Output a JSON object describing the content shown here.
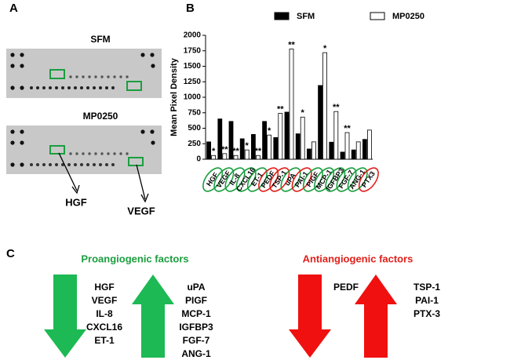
{
  "panel_labels": [
    "A",
    "B",
    "C"
  ],
  "panel_a": {
    "top_label": "SFM",
    "bottom_label": "MP0250",
    "callouts": [
      "HGF",
      "VEGF"
    ]
  },
  "chart_data": {
    "type": "bar",
    "y_label": "Mean Pixel Density",
    "categories": [
      "HGF",
      "VEGF",
      "IL-8",
      "CXCL16",
      "ET-1",
      "PEDF",
      "TSP-1",
      "uPA",
      "PAI-1",
      "PlGF",
      "MCP-1",
      "IGFBP3",
      "FGF-7",
      "ANG-1",
      "PTX3"
    ],
    "category_colors": [
      "#1a9e3f",
      "#1a9e3f",
      "#1a9e3f",
      "#1a9e3f",
      "#1a9e3f",
      "#e0201b",
      "#e0201b",
      "#1a9e3f",
      "#e0201b",
      "#1a9e3f",
      "#1a9e3f",
      "#1a9e3f",
      "#1a9e3f",
      "#1a9e3f",
      "#e0201b"
    ],
    "series": [
      {
        "name": "SFM",
        "color": "#000000",
        "values": [
          280,
          650,
          610,
          330,
          400,
          610,
          350,
          760,
          410,
          165,
          1190,
          275,
          115,
          150,
          320
        ]
      },
      {
        "name": "MP0250",
        "color": "#ffffff",
        "values": [
          60,
          90,
          60,
          150,
          60,
          390,
          740,
          1780,
          680,
          280,
          1720,
          770,
          430,
          280,
          470
        ]
      }
    ],
    "significance": [
      "*",
      "**",
      "**",
      "*",
      "**",
      "*",
      "**",
      "**",
      "*",
      null,
      "*",
      "**",
      "**",
      null,
      null
    ],
    "ylim": [
      0,
      2000
    ],
    "yticks": [
      0,
      250,
      500,
      750,
      1000,
      1250,
      1500,
      1750,
      2000
    ],
    "grid": false
  },
  "panel_c": {
    "pro": {
      "title": "Proangiogenic factors",
      "down": [
        "HGF",
        "VEGF",
        "IL-8",
        "CXCL16",
        "ET-1"
      ],
      "up": [
        "uPA",
        "PIGF",
        "MCP-1",
        "IGFBP3",
        "FGF-7",
        "ANG-1"
      ]
    },
    "anti": {
      "title": "Antiangiogenic factors",
      "down": [
        "PEDF"
      ],
      "up": [
        "TSP-1",
        "PAI-1",
        "PTX-3"
      ]
    }
  }
}
